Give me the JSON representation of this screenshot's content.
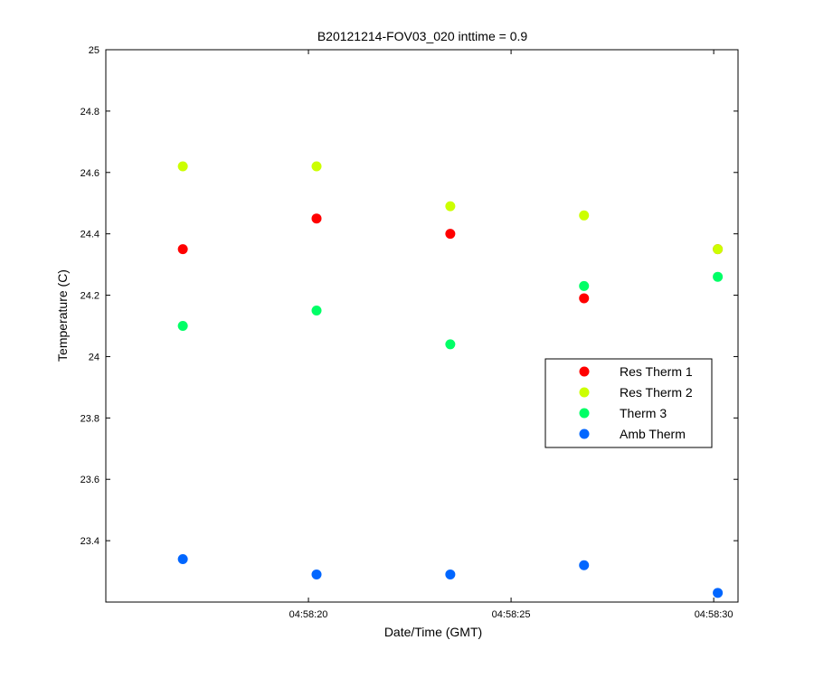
{
  "chart_data": {
    "type": "scatter",
    "title": "B20121214-FOV03_020 inttime = 0.9",
    "xlabel": "Date/Time (GMT)",
    "ylabel": "Temperature (C)",
    "x_unit": "time",
    "x": [
      "04:58:16.9",
      "04:58:20.2",
      "04:58:23.5",
      "04:58:26.8",
      "04:58:30.1"
    ],
    "xlim": [
      "04:58:15.0",
      "04:58:30.6"
    ],
    "xticks": [
      "04:58:20",
      "04:58:25",
      "04:58:30"
    ],
    "ylim": [
      23.2,
      25
    ],
    "yticks": [
      23.4,
      23.6,
      23.8,
      24,
      24.2,
      24.4,
      24.6,
      24.8,
      25
    ],
    "grid": false,
    "legend_position": "right",
    "series": [
      {
        "name": "Res Therm 1",
        "color": "#ff0000",
        "values": [
          24.35,
          24.45,
          24.4,
          24.19,
          24.35
        ]
      },
      {
        "name": "Res Therm 2",
        "color": "#ccff00",
        "values": [
          24.62,
          24.62,
          24.49,
          24.46,
          24.35
        ]
      },
      {
        "name": "Therm 3",
        "color": "#00ff66",
        "values": [
          24.1,
          24.15,
          24.04,
          24.23,
          24.26
        ]
      },
      {
        "name": "Amb Therm",
        "color": "#0066ff",
        "values": [
          23.34,
          23.29,
          23.29,
          23.32,
          23.23
        ]
      }
    ]
  }
}
